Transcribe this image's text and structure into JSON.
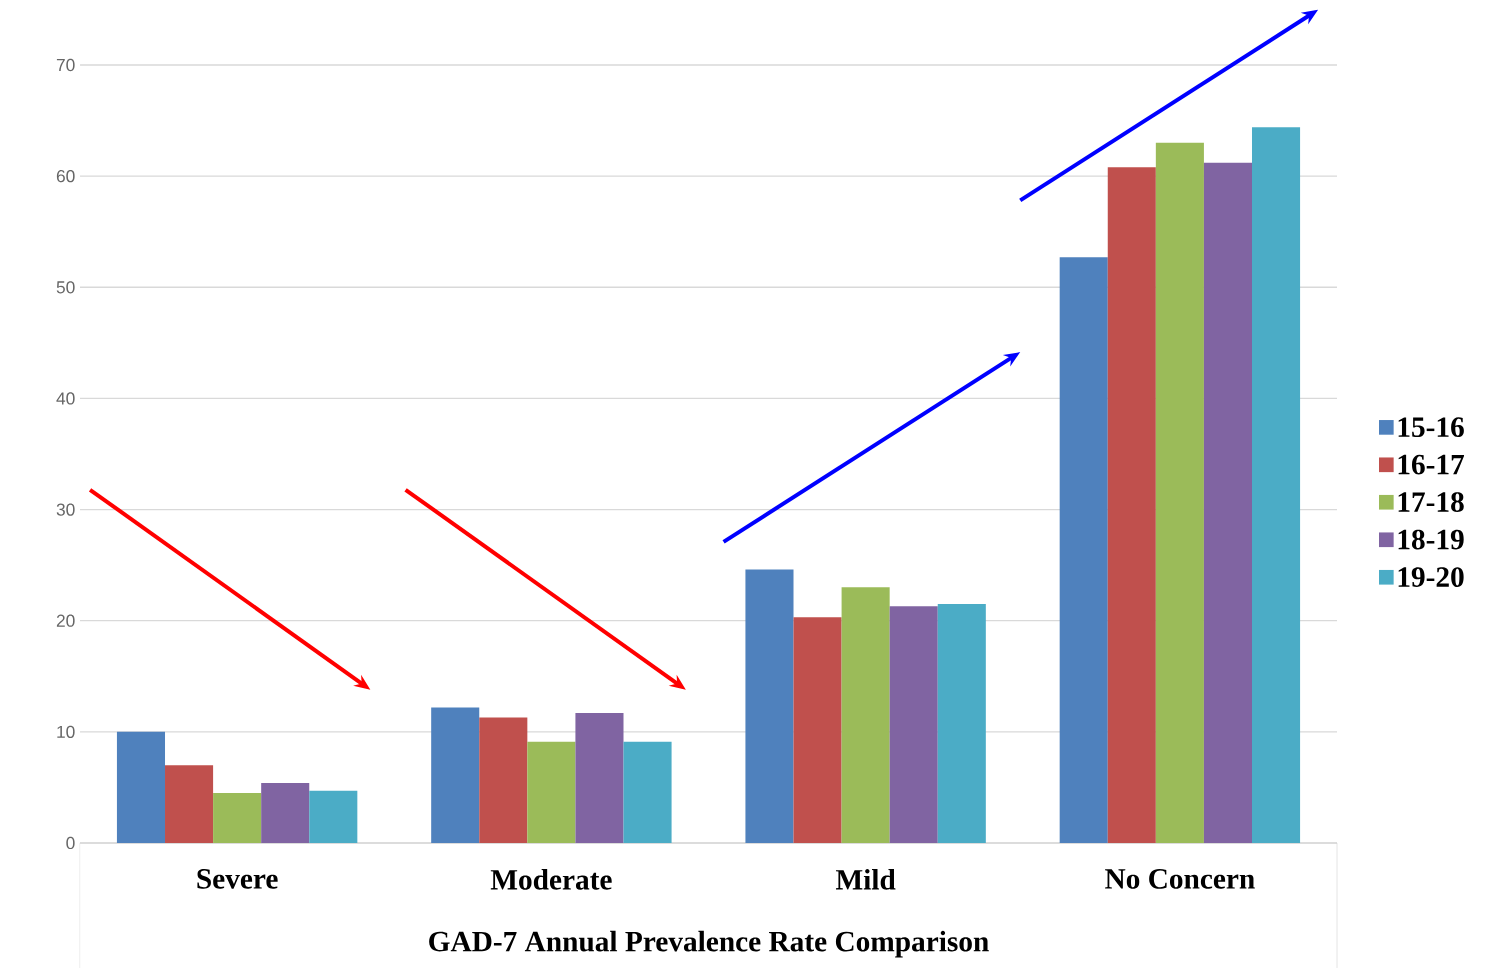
{
  "chart_data": {
    "type": "bar",
    "xlabel": "GAD-7 Annual Prevalence Rate Comparison",
    "categories": [
      "Severe",
      "Moderate",
      "Mild",
      "No Concern"
    ],
    "series": [
      {
        "name": "15-16",
        "color": "#4f81bd",
        "values": [
          10.0,
          12.2,
          24.6,
          52.7
        ]
      },
      {
        "name": "16-17",
        "color": "#c0504d",
        "values": [
          7.0,
          11.3,
          20.3,
          60.8
        ]
      },
      {
        "name": "17-18",
        "color": "#9bbb59",
        "values": [
          4.5,
          9.1,
          23.0,
          63.0
        ]
      },
      {
        "name": "18-19",
        "color": "#8064a2",
        "values": [
          5.4,
          11.7,
          21.3,
          61.2
        ]
      },
      {
        "name": "19-20",
        "color": "#4bacc6",
        "values": [
          4.7,
          9.1,
          21.5,
          64.4
        ]
      }
    ],
    "ylim": [
      0,
      70
    ],
    "yticks": [
      0,
      10,
      20,
      30,
      40,
      50,
      60,
      70
    ],
    "grid": "y",
    "legend": "right"
  }
}
